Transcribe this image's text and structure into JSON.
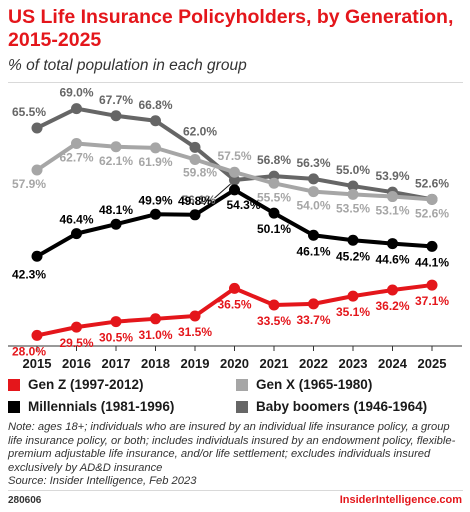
{
  "title": "US Life Insurance Policyholders, by Generation, 2015-2025",
  "subtitle": "% of total population in each group",
  "colors": {
    "title": "#e4161b",
    "gen_z": "#e4161b",
    "millennials": "#000000",
    "gen_x": "#a6a6a6",
    "baby_boomers": "#666666"
  },
  "chart_data": {
    "type": "line",
    "x": [
      "2015",
      "2016",
      "2017",
      "2018",
      "2019",
      "2020",
      "2021",
      "2022",
      "2023",
      "2024",
      "2025"
    ],
    "ylim": [
      25,
      72
    ],
    "grid": false,
    "legend_position": "bottom",
    "series": [
      {
        "name": "Baby boomers (1946-1964)",
        "color": "#666666",
        "values": [
          65.5,
          69.0,
          67.7,
          66.8,
          62.0,
          56.1,
          56.8,
          56.3,
          55.0,
          53.9,
          52.6
        ],
        "labels": [
          "65.5%",
          "69.0%",
          "67.7%",
          "66.8%",
          "62.0%",
          "56.1%",
          "56.8%",
          "56.3%",
          "55.0%",
          "53.9%",
          "52.6%"
        ]
      },
      {
        "name": "Gen X (1965-1980)",
        "color": "#a6a6a6",
        "values": [
          57.9,
          62.7,
          62.1,
          61.9,
          59.8,
          57.5,
          55.5,
          54.0,
          53.5,
          53.1,
          52.6
        ],
        "labels": [
          "57.9%",
          "62.7%",
          "62.1%",
          "61.9%",
          "59.8%",
          "57.5%",
          "55.5%",
          "54.0%",
          "53.5%",
          "53.1%",
          "52.6%"
        ]
      },
      {
        "name": "Millennials (1981-1996)",
        "color": "#000000",
        "values": [
          42.3,
          46.4,
          48.1,
          49.9,
          49.8,
          54.3,
          50.1,
          46.1,
          45.2,
          44.6,
          44.1
        ],
        "labels": [
          "42.3%",
          "46.4%",
          "48.1%",
          "49.9%",
          "49.8%",
          "54.3%",
          "50.1%",
          "46.1%",
          "45.2%",
          "44.6%",
          "44.1%"
        ]
      },
      {
        "name": "Gen Z (1997-2012)",
        "color": "#e4161b",
        "values": [
          28.0,
          29.5,
          30.5,
          31.0,
          31.5,
          36.5,
          33.5,
          33.7,
          35.1,
          36.2,
          37.1
        ],
        "labels": [
          "28.0%",
          "29.5%",
          "30.5%",
          "31.0%",
          "31.5%",
          "36.5%",
          "33.5%",
          "33.7%",
          "35.1%",
          "36.2%",
          "37.1%"
        ]
      }
    ]
  },
  "legend": [
    {
      "label": "Gen Z (1997-2012)",
      "color": "#e4161b"
    },
    {
      "label": "Gen X (1965-1980)",
      "color": "#a6a6a6"
    },
    {
      "label": "Millennials (1981-1996)",
      "color": "#000000"
    },
    {
      "label": "Baby boomers (1946-1964)",
      "color": "#666666"
    }
  ],
  "note": "Note: ages 18+; individuals who are insured by an individual life insurance policy, a group life insurance policy, or both; includes individuals insured by an endowment policy, flexible-premium adjustable life insurance, and/or life settlement; excludes individuals insured exclusively by AD&D insurance",
  "source": "Source: Insider Intelligence, Feb 2023",
  "footer": {
    "id": "280606",
    "brand": "InsiderIntelligence.com"
  }
}
